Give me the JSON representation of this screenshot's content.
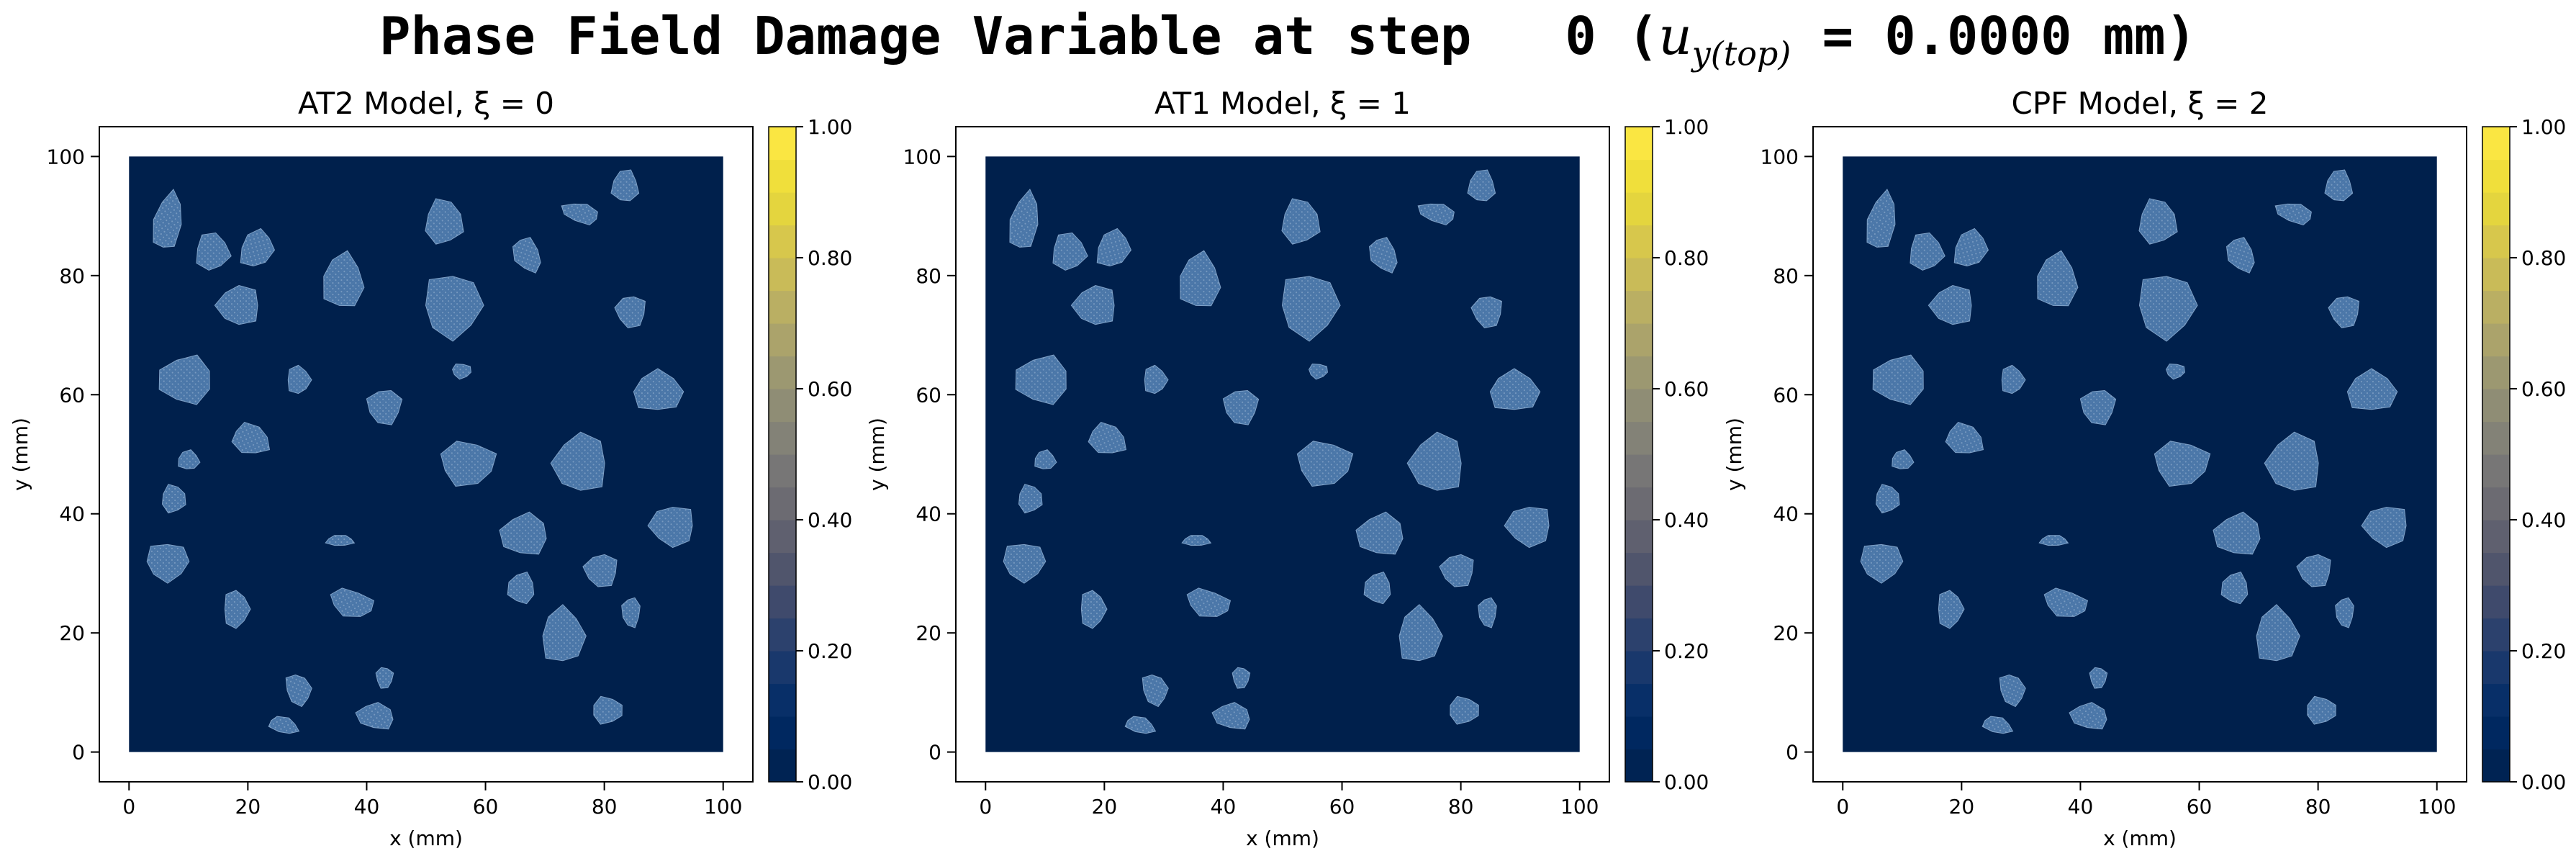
{
  "figure": {
    "title_prefix": "Phase Field Damage Variable at step   0 (",
    "title_math_base": "u",
    "title_math_sub": "y(top)",
    "title_suffix": " = 0.0000 mm)"
  },
  "chart_data": [
    {
      "type": "heatmap",
      "title": "AT2 Model, ξ = 0",
      "xlabel": "x (mm)",
      "ylabel": "y (mm)",
      "xlim": [
        -5,
        105
      ],
      "ylim": [
        -5,
        105
      ],
      "xticks": [
        0,
        20,
        40,
        60,
        80,
        100
      ],
      "yticks": [
        0,
        20,
        40,
        60,
        80,
        100
      ],
      "domain_extent": [
        0,
        100,
        0,
        100
      ],
      "background_damage": 0.0,
      "inclusion_value": 0.3,
      "colorbar": {
        "min": 0.0,
        "max": 1.0,
        "ticks": [
          "0.00",
          "0.20",
          "0.40",
          "0.60",
          "0.80",
          "1.00"
        ],
        "colormap": "cividis",
        "levels": 20
      }
    },
    {
      "type": "heatmap",
      "title": "AT1 Model, ξ = 1",
      "xlabel": "x (mm)",
      "ylabel": "y (mm)",
      "xlim": [
        -5,
        105
      ],
      "ylim": [
        -5,
        105
      ],
      "xticks": [
        0,
        20,
        40,
        60,
        80,
        100
      ],
      "yticks": [
        0,
        20,
        40,
        60,
        80,
        100
      ],
      "domain_extent": [
        0,
        100,
        0,
        100
      ],
      "background_damage": 0.0,
      "inclusion_value": 0.3,
      "colorbar": {
        "min": 0.0,
        "max": 1.0,
        "ticks": [
          "0.00",
          "0.20",
          "0.40",
          "0.60",
          "0.80",
          "1.00"
        ],
        "colormap": "cividis",
        "levels": 20
      }
    },
    {
      "type": "heatmap",
      "title": "CPF Model, ξ = 2",
      "xlabel": "x (mm)",
      "ylabel": "y (mm)",
      "xlim": [
        -5,
        105
      ],
      "ylim": [
        -5,
        105
      ],
      "xticks": [
        0,
        20,
        40,
        60,
        80,
        100
      ],
      "yticks": [
        0,
        20,
        40,
        60,
        80,
        100
      ],
      "domain_extent": [
        0,
        100,
        0,
        100
      ],
      "background_damage": 0.0,
      "inclusion_value": 0.3,
      "colorbar": {
        "min": 0.0,
        "max": 1.0,
        "ticks": [
          "0.00",
          "0.20",
          "0.40",
          "0.60",
          "0.80",
          "1.00"
        ],
        "colormap": "cividis",
        "levels": 20
      }
    }
  ],
  "inclusions": [
    {
      "cx": 6.5,
      "cy": 89,
      "rx": 2.6,
      "ry": 5.5,
      "rot": -10
    },
    {
      "cx": 14,
      "cy": 84,
      "rx": 3.2,
      "ry": 3.5,
      "rot": 0
    },
    {
      "cx": 21.5,
      "cy": 84.5,
      "rx": 3.0,
      "ry": 3.6,
      "rot": -30
    },
    {
      "cx": 18.5,
      "cy": 75,
      "rx": 4.0,
      "ry": 3.7,
      "rot": 0
    },
    {
      "cx": 36,
      "cy": 79,
      "rx": 3.8,
      "ry": 5.2,
      "rot": 0
    },
    {
      "cx": 53,
      "cy": 89,
      "rx": 3.6,
      "ry": 4.2,
      "rot": 0
    },
    {
      "cx": 67,
      "cy": 83.5,
      "rx": 2.4,
      "ry": 3.4,
      "rot": 25
    },
    {
      "cx": 76,
      "cy": 90.5,
      "rx": 3.5,
      "ry": 1.8,
      "rot": -15
    },
    {
      "cx": 83.5,
      "cy": 95,
      "rx": 2.5,
      "ry": 3.0,
      "rot": 0
    },
    {
      "cx": 54.5,
      "cy": 75,
      "rx": 5.5,
      "ry": 6.0,
      "rot": 0
    },
    {
      "cx": 84.5,
      "cy": 74,
      "rx": 2.8,
      "ry": 3.0,
      "rot": 0
    },
    {
      "cx": 9.5,
      "cy": 62.5,
      "rx": 5.0,
      "ry": 4.5,
      "rot": 0
    },
    {
      "cx": 28.5,
      "cy": 62.5,
      "rx": 2.2,
      "ry": 2.6,
      "rot": 0
    },
    {
      "cx": 56,
      "cy": 64,
      "rx": 1.8,
      "ry": 1.4,
      "rot": 0
    },
    {
      "cx": 43,
      "cy": 58,
      "rx": 3.2,
      "ry": 3.3,
      "rot": 0
    },
    {
      "cx": 89,
      "cy": 60.5,
      "rx": 4.6,
      "ry": 3.8,
      "rot": 0
    },
    {
      "cx": 20.5,
      "cy": 52.5,
      "rx": 3.6,
      "ry": 2.8,
      "rot": -20
    },
    {
      "cx": 57,
      "cy": 48.5,
      "rx": 5.2,
      "ry": 4.2,
      "rot": 0
    },
    {
      "cx": 76,
      "cy": 48.5,
      "rx": 5.0,
      "ry": 5.5,
      "rot": 0
    },
    {
      "cx": 10,
      "cy": 49,
      "rx": 2.0,
      "ry": 1.8,
      "rot": 0
    },
    {
      "cx": 7.5,
      "cy": 42.5,
      "rx": 2.3,
      "ry": 2.6,
      "rot": 0
    },
    {
      "cx": 91.5,
      "cy": 38,
      "rx": 4.2,
      "ry": 3.8,
      "rot": 0
    },
    {
      "cx": 66.5,
      "cy": 36.5,
      "rx": 4.4,
      "ry": 3.9,
      "rot": 0
    },
    {
      "cx": 35.5,
      "cy": 35.5,
      "rx": 2.6,
      "ry": 1.0,
      "rot": 0
    },
    {
      "cx": 6.5,
      "cy": 32,
      "rx": 4.0,
      "ry": 3.6,
      "rot": 0
    },
    {
      "cx": 79.5,
      "cy": 30.5,
      "rx": 3.1,
      "ry": 3.1,
      "rot": 0
    },
    {
      "cx": 66,
      "cy": 27.5,
      "rx": 2.5,
      "ry": 2.9,
      "rot": 0
    },
    {
      "cx": 18,
      "cy": 24,
      "rx": 2.4,
      "ry": 3.5,
      "rot": 0
    },
    {
      "cx": 37.5,
      "cy": 25,
      "rx": 4.2,
      "ry": 2.5,
      "rot": -15
    },
    {
      "cx": 84.5,
      "cy": 23.5,
      "rx": 1.7,
      "ry": 2.8,
      "rot": 0
    },
    {
      "cx": 73,
      "cy": 19.5,
      "rx": 4.0,
      "ry": 5.2,
      "rot": 0
    },
    {
      "cx": 28.5,
      "cy": 10.5,
      "rx": 2.3,
      "ry": 3.0,
      "rot": 20
    },
    {
      "cx": 43,
      "cy": 12.5,
      "rx": 1.6,
      "ry": 2.0,
      "rot": 0
    },
    {
      "cx": 41.5,
      "cy": 6,
      "rx": 3.5,
      "ry": 2.4,
      "rot": -10
    },
    {
      "cx": 26,
      "cy": 4.5,
      "rx": 2.8,
      "ry": 1.5,
      "rot": -15
    },
    {
      "cx": 80.5,
      "cy": 7,
      "rx": 2.9,
      "ry": 2.5,
      "rot": 0
    }
  ]
}
